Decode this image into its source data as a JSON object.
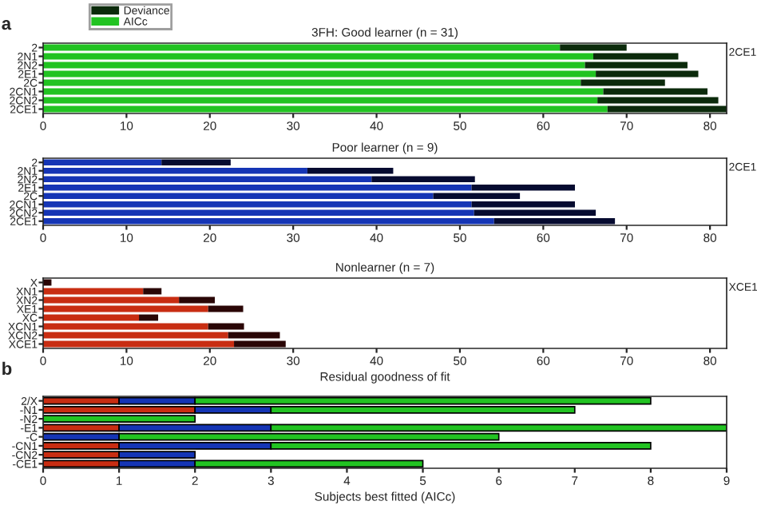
{
  "chart_data": [
    {
      "type": "bar",
      "orientation": "horizontal",
      "stacked": true,
      "title": "3FH: Good learner (n = 31)",
      "categories": [
        "2",
        "2N1",
        "2N2",
        "2E1",
        "2C",
        "2CN1",
        "2CN2",
        "2CE1"
      ],
      "series": [
        {
          "name": "AICc",
          "color": "#22c322",
          "values": [
            62,
            66,
            65,
            66.3,
            64.5,
            67.2,
            66.5,
            67.7
          ]
        },
        {
          "name": "Deviance",
          "color": "#0b2a0b",
          "values": [
            8,
            10.2,
            12.3,
            12.3,
            10.1,
            12.5,
            14.5,
            14.6
          ]
        }
      ],
      "xlim": [
        0,
        82
      ],
      "xticks": [
        0,
        10,
        20,
        30,
        40,
        50,
        60,
        70,
        80
      ],
      "legend": "top left",
      "annotations": [
        "a",
        "2CE1"
      ]
    },
    {
      "type": "bar",
      "orientation": "horizontal",
      "stacked": true,
      "title": "Poor learner (n = 9)",
      "categories": [
        "2",
        "2N1",
        "2N2",
        "2E1",
        "2C",
        "2CN1",
        "2CN2",
        "2CE1"
      ],
      "series": [
        {
          "color": "#1535b5",
          "values": [
            14.2,
            31.7,
            39.4,
            51.4,
            46.8,
            51.4,
            51.7,
            54.1
          ]
        },
        {
          "color": "#060b30",
          "values": [
            8.3,
            10.3,
            12.4,
            12.4,
            10.4,
            12.4,
            14.6,
            14.5
          ]
        }
      ],
      "xlim": [
        0,
        82
      ],
      "xticks": [
        0,
        10,
        20,
        30,
        40,
        50,
        60,
        70,
        80
      ],
      "annotations": [
        "2CE1"
      ]
    },
    {
      "type": "bar",
      "orientation": "horizontal",
      "stacked": true,
      "title": "Nonlearner (n = 7)",
      "xlabel": "Residual goodness of fit",
      "categories": [
        "X",
        "XN1",
        "XN2",
        "XE1",
        "XC",
        "XCN1",
        "XCN2",
        "XCE1"
      ],
      "series": [
        {
          "color": "#c82d12",
          "values": [
            0,
            12,
            16.3,
            19.8,
            11.5,
            19.8,
            22.2,
            22.9
          ]
        },
        {
          "color": "#2a0606",
          "values": [
            1,
            2.2,
            4.3,
            4.2,
            2.3,
            4.3,
            6.2,
            6.2
          ]
        }
      ],
      "xlim": [
        0,
        82
      ],
      "xticks": [
        0,
        10,
        20,
        30,
        40,
        50,
        60,
        70,
        80
      ],
      "annotations": [
        "XCE1"
      ]
    },
    {
      "type": "bar",
      "orientation": "horizontal",
      "stacked": true,
      "xlabel": "Subjects best fitted (AICc)",
      "categories": [
        "2/X",
        "-N1",
        "-N2",
        "-E1",
        "-C",
        "-CN1",
        "-CN2",
        "-CE1"
      ],
      "series": [
        {
          "color": "#c82d12",
          "values": [
            1,
            2,
            0,
            1,
            0,
            1,
            1,
            1
          ]
        },
        {
          "color": "#1535b5",
          "values": [
            1,
            1,
            0,
            2,
            1,
            2,
            1,
            1
          ]
        },
        {
          "color": "#22c322",
          "values": [
            6,
            4,
            2,
            6,
            5,
            5,
            0,
            3
          ]
        }
      ],
      "xlim": [
        0,
        9
      ],
      "xticks": [
        0,
        1,
        2,
        3,
        4,
        5,
        6,
        7,
        8,
        9
      ],
      "annotations": [
        "b"
      ]
    }
  ]
}
